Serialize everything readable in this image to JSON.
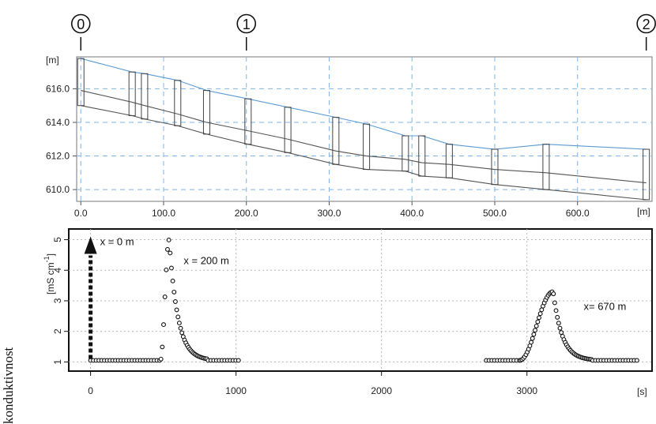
{
  "chart_data": [
    {
      "type": "line",
      "title": "",
      "x_unit": "[m]",
      "y_unit": "[m]",
      "xlim": [
        -5,
        690
      ],
      "ylim": [
        609.3,
        617.9
      ],
      "xticks": [
        "0.0",
        "100.0",
        "200.0",
        "300.0",
        "400.0",
        "500.0",
        "600.0"
      ],
      "xtick_values": [
        0,
        100,
        200,
        300,
        400,
        500,
        600
      ],
      "yticks": [
        "610.0",
        "612.0",
        "614.0",
        "616.0"
      ],
      "ytick_values": [
        610,
        612,
        614,
        616
      ],
      "grid": true,
      "section_markers": [
        {
          "label": "0",
          "x": 0
        },
        {
          "label": "1",
          "x": 200
        },
        {
          "label": "2",
          "x": 683
        }
      ],
      "series": [
        {
          "role": "water-surface",
          "color": "#5b9bd5",
          "x": [
            0,
            62,
            77,
            117,
            152,
            202,
            250,
            308,
            345,
            392,
            412,
            445,
            500,
            562,
            683
          ],
          "y": [
            617.8,
            617.0,
            616.9,
            616.5,
            615.9,
            615.4,
            614.9,
            614.3,
            613.9,
            613.2,
            613.2,
            612.7,
            612.4,
            612.7,
            612.4
          ]
        },
        {
          "role": "channel-top",
          "color": "#555555",
          "x": [
            0,
            62,
            77,
            117,
            152,
            202,
            250,
            308,
            345,
            392,
            412,
            445,
            500,
            562,
            683
          ],
          "y": [
            615.9,
            615.2,
            615.0,
            614.5,
            614.0,
            613.5,
            613.0,
            612.3,
            612.0,
            611.8,
            611.6,
            611.5,
            611.2,
            611.0,
            610.4
          ]
        },
        {
          "role": "channel-bottom",
          "color": "#555555",
          "x": [
            0,
            62,
            77,
            117,
            152,
            202,
            250,
            308,
            345,
            392,
            412,
            445,
            500,
            562,
            683
          ],
          "y": [
            615.0,
            614.4,
            614.2,
            613.8,
            613.3,
            612.7,
            612.2,
            611.5,
            611.2,
            611.1,
            610.8,
            610.7,
            610.3,
            610.0,
            609.4
          ]
        }
      ]
    },
    {
      "type": "scatter",
      "title": "",
      "xlabel": "[s]",
      "ylabel": "konduktivnost",
      "yunit": "[mS cm",
      "yunit_exp": "-1",
      "yunit_close": "]",
      "xlim": [
        -150,
        3860
      ],
      "ylim": [
        0.7,
        5.35
      ],
      "xticks": [
        "0",
        "1000",
        "2000",
        "3000"
      ],
      "xtick_values": [
        0,
        1000,
        2000,
        3000
      ],
      "yticks": [
        "5",
        "4",
        "3",
        "2",
        "1"
      ],
      "ytick_values": [
        5,
        4,
        3,
        2,
        1
      ],
      "grid": true,
      "arrow": {
        "label": "x = 0 m",
        "x": 0,
        "y_from": 1.1,
        "y_to": 5.0
      },
      "annotations": [
        {
          "text": "x = 200 m",
          "x": 640,
          "y": 4.2
        },
        {
          "text": "x= 670 m",
          "x": 3390,
          "y": 2.7
        }
      ],
      "series": [
        {
          "name": "x = 200 m",
          "peak": 5.0,
          "baseline": 1.05,
          "start": 0,
          "end": 1020,
          "rise_start": 480,
          "peak_x": 540,
          "tail_end": 800
        },
        {
          "name": "x= 670 m",
          "peak": 3.3,
          "baseline": 1.05,
          "start": 2720,
          "end": 3770,
          "rise_start": 2950,
          "peak_x": 3180,
          "tail_end": 3450
        }
      ]
    }
  ]
}
